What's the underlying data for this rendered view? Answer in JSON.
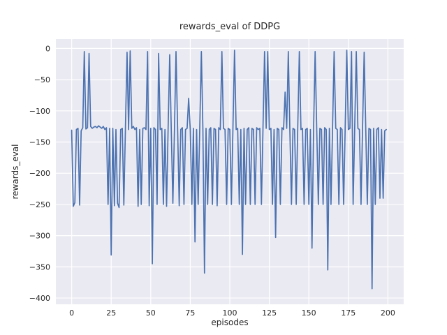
{
  "chart_data": {
    "type": "line",
    "title": "rewards_eval of DDPG",
    "xlabel": "episodes",
    "ylabel": "rewards_eval",
    "xlim": [
      -10,
      210
    ],
    "ylim": [
      -410,
      15
    ],
    "xticks": [
      0,
      25,
      50,
      75,
      100,
      125,
      150,
      175,
      200
    ],
    "xtick_labels": [
      "0",
      "25",
      "50",
      "75",
      "100",
      "125",
      "150",
      "175",
      "200"
    ],
    "yticks": [
      0,
      -50,
      -100,
      -150,
      -200,
      -250,
      -300,
      -350,
      -400
    ],
    "ytick_labels": [
      "0",
      "−50",
      "−100",
      "−150",
      "−200",
      "−250",
      "−300",
      "−350",
      "−400"
    ],
    "grid": true,
    "legend": false,
    "plot_bg_color": "#eaeaf2",
    "grid_color": "#ffffff",
    "line_color": "#4c72b0",
    "text_color": "#262626",
    "series": [
      {
        "name": "rewards_eval",
        "x_start": 0,
        "x_step": 1,
        "values": [
          -131,
          -253,
          -247,
          -130,
          -128,
          -251,
          -132,
          -127,
          -5,
          -129,
          -127,
          -8,
          -125,
          -128,
          -126,
          -125,
          -127,
          -124,
          -126,
          -128,
          -125,
          -130,
          -127,
          -250,
          -128,
          -331,
          -128,
          -252,
          -130,
          -248,
          -255,
          -130,
          -128,
          -251,
          -127,
          -6,
          -130,
          -4,
          -128,
          -125,
          -130,
          -127,
          -253,
          -130,
          -250,
          -128,
          -127,
          -130,
          -5,
          -252,
          -128,
          -345,
          -127,
          -130,
          -250,
          -8,
          -130,
          -128,
          -250,
          -130,
          -253,
          -128,
          -10,
          -130,
          -248,
          -130,
          -5,
          -128,
          -252,
          -130,
          -127,
          -250,
          -130,
          -128,
          -80,
          -130,
          -250,
          -128,
          -310,
          -130,
          -250,
          -128,
          -5,
          -130,
          -360,
          -128,
          -250,
          -130,
          -127,
          -250,
          -128,
          -130,
          -252,
          -127,
          -130,
          -5,
          -128,
          -130,
          -250,
          -128,
          -130,
          -250,
          -128,
          -3,
          -130,
          -128,
          -250,
          -130,
          -330,
          -128,
          -250,
          -130,
          -127,
          -250,
          -128,
          -130,
          -250,
          -127,
          -130,
          -128,
          -250,
          -130,
          -5,
          -128,
          -5,
          -130,
          -128,
          -250,
          -130,
          -303,
          -128,
          -130,
          -250,
          -127,
          -130,
          -70,
          -128,
          -5,
          -130,
          -250,
          -128,
          -130,
          -250,
          -127,
          -5,
          -130,
          -128,
          -250,
          -130,
          -128,
          -250,
          -130,
          -320,
          -128,
          -5,
          -130,
          -250,
          -128,
          -130,
          -250,
          -127,
          -130,
          -355,
          -128,
          -250,
          -130,
          -5,
          -128,
          -130,
          -250,
          -127,
          -130,
          -250,
          -128,
          -3,
          -130,
          -128,
          -5,
          -250,
          -130,
          -5,
          -128,
          -130,
          -250,
          -127,
          -6,
          -130,
          -250,
          -128,
          -130,
          -385,
          -128,
          -250,
          -130,
          -127,
          -240,
          -130,
          -240,
          -132,
          -130
        ]
      }
    ]
  }
}
